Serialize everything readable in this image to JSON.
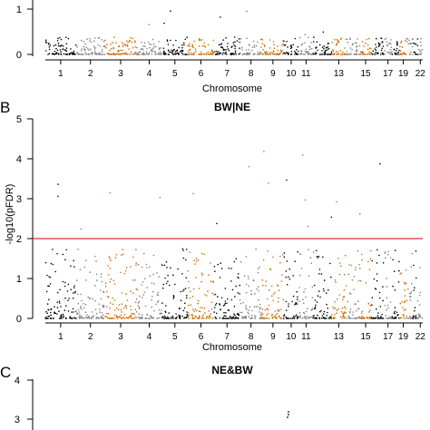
{
  "palette": {
    "black": "#000000",
    "gray": "#7f7f7f",
    "orange": "#cc6a00",
    "threshold": "#e03030"
  },
  "chart_data": [
    {
      "type": "scatter",
      "panel": "",
      "title": "",
      "xlabel": "Chromosome",
      "ylabel": "",
      "ylim": [
        0,
        1.2
      ],
      "yticks": [
        0,
        1
      ],
      "x_tick_labels": [
        "1",
        "2",
        "3",
        "4",
        "5",
        "6",
        "7",
        "8",
        "9",
        "10",
        "11",
        "13",
        "15",
        "17",
        "19",
        "22"
      ],
      "colors_cycle": [
        "black",
        "gray",
        "orange",
        "gray",
        "black",
        "orange",
        "black",
        "gray",
        "orange",
        "black",
        "gray",
        "black",
        "orange",
        "gray",
        "orange",
        "black",
        "gray",
        "black",
        "orange",
        "gray",
        "black",
        "gray"
      ],
      "max_y": 1.2
    },
    {
      "type": "scatter",
      "panel": "B",
      "title": "BW|NE",
      "xlabel": "Chromosome",
      "ylabel": "-log10(pFDR)",
      "ylim": [
        0,
        5
      ],
      "yticks": [
        0,
        1,
        2,
        3,
        4,
        5
      ],
      "x_tick_labels": [
        "1",
        "2",
        "3",
        "4",
        "5",
        "6",
        "7",
        "8",
        "9",
        "10",
        "11",
        "13",
        "15",
        "17",
        "19",
        "22"
      ],
      "threshold": 2,
      "colors_cycle": [
        "black",
        "gray",
        "orange",
        "gray",
        "black",
        "orange",
        "black",
        "gray",
        "orange",
        "black",
        "gray",
        "black",
        "orange",
        "gray",
        "orange",
        "black",
        "gray",
        "black",
        "orange",
        "gray",
        "black",
        "gray"
      ],
      "max_y": 4.6
    },
    {
      "type": "scatter",
      "panel": "C",
      "title": "NE&BW",
      "xlabel": "",
      "ylabel": "",
      "yticks": [
        3,
        4
      ]
    }
  ]
}
